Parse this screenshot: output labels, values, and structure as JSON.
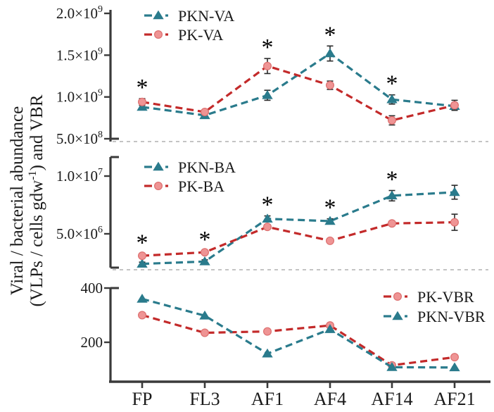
{
  "figure": {
    "ylabel_line1": "Viral / bacterial abundance",
    "ylabel_line2_pre": "(VLPs / cells gdw",
    "ylabel_line2_sup": "-1",
    "ylabel_line2_post": ") and VBR",
    "significance_symbol": "*",
    "colors": {
      "teal": "#2a7b8c",
      "red_line": "#c32a2a",
      "red_marker_fill": "#ef9494",
      "red_marker_edge": "#dd7070",
      "error_bar": "#2a2a2a",
      "axis": "#3a3a3a",
      "separator": "#b0b0b0",
      "text": "#1a1a1a",
      "asterisk": "#000000"
    }
  },
  "chart_data": [
    {
      "type": "line",
      "panel": "viral-abundance",
      "categories": [
        "FP",
        "FL3",
        "AF1",
        "AF4",
        "AF14",
        "AF21"
      ],
      "yticks": [
        {
          "value": 2000000000.0,
          "label": "2.0×10",
          "sup": "9"
        },
        {
          "value": 1500000000.0,
          "label": "1.5×10",
          "sup": "9"
        },
        {
          "value": 1000000000.0,
          "label": "1.0×10",
          "sup": "9"
        },
        {
          "value": 500000000.0,
          "label": "5.0×10",
          "sup": "8"
        }
      ],
      "ylim": [
        460000000.0,
        2050000000.0
      ],
      "grid": false,
      "series": [
        {
          "name": "PKN-VA",
          "color": "teal",
          "marker": "triangle",
          "values": [
            880000000.0,
            780000000.0,
            1020000000.0,
            1520000000.0,
            970000000.0,
            890000000.0
          ],
          "errors": [
            35000000.0,
            25000000.0,
            60000000.0,
            90000000.0,
            55000000.0,
            40000000.0
          ]
        },
        {
          "name": "PK-VA",
          "color": "red",
          "marker": "circle",
          "values": [
            940000000.0,
            820000000.0,
            1370000000.0,
            1140000000.0,
            720000000.0,
            900000000.0
          ],
          "errors": [
            40000000.0,
            25000000.0,
            90000000.0,
            50000000.0,
            55000000.0,
            60000000.0
          ]
        }
      ],
      "significant_categories": [
        "FP",
        "AF1",
        "AF4",
        "AF14"
      ],
      "legend": {
        "position": "top-left",
        "entries": [
          "PKN-VA",
          "PK-VA"
        ]
      }
    },
    {
      "type": "line",
      "panel": "bacterial-abundance",
      "categories": [
        "FP",
        "FL3",
        "AF1",
        "AF4",
        "AF14",
        "AF21"
      ],
      "yticks": [
        {
          "value": 10000000.0,
          "label": "1.0×10",
          "sup": "7"
        },
        {
          "value": 5000000.0,
          "label": "5.0×10",
          "sup": "6"
        }
      ],
      "ylim": [
        2000000.0,
        11700000.0
      ],
      "grid": false,
      "series": [
        {
          "name": "PKN-BA",
          "color": "teal",
          "marker": "triangle",
          "values": [
            2400000.0,
            2600000.0,
            6300000.0,
            6100000.0,
            8300000.0,
            8600000.0
          ],
          "errors": [
            150000.0,
            150000.0,
            250000.0,
            200000.0,
            450000.0,
            600000.0
          ]
        },
        {
          "name": "PK-BA",
          "color": "red",
          "marker": "circle",
          "values": [
            3100000.0,
            3400000.0,
            5600000.0,
            4400000.0,
            5900000.0,
            6000000.0
          ],
          "errors": [
            150000.0,
            150000.0,
            200000.0,
            150000.0,
            200000.0,
            700000.0
          ]
        }
      ],
      "significant_categories": [
        "FP",
        "FL3",
        "AF1",
        "AF4",
        "AF14"
      ],
      "legend": {
        "position": "top-left",
        "entries": [
          "PKN-BA",
          "PK-BA"
        ]
      }
    },
    {
      "type": "line",
      "panel": "vbr",
      "categories": [
        "FP",
        "FL3",
        "AF1",
        "AF4",
        "AF14",
        "AF21"
      ],
      "yticks": [
        {
          "value": 400,
          "label": "400",
          "sup": ""
        },
        {
          "value": 200,
          "label": "200",
          "sup": ""
        }
      ],
      "ylim": [
        55,
        400
      ],
      "grid": false,
      "series": [
        {
          "name": "PK-VBR",
          "color": "red",
          "marker": "circle",
          "values": [
            300,
            235,
            240,
            262,
            115,
            145
          ],
          "errors": [
            0,
            0,
            0,
            0,
            0,
            0
          ]
        },
        {
          "name": "PKN-VBR",
          "color": "teal",
          "marker": "triangle",
          "values": [
            360,
            298,
            158,
            248,
            108,
            107
          ],
          "errors": [
            0,
            0,
            0,
            0,
            0,
            0
          ]
        }
      ],
      "significant_categories": [],
      "legend": {
        "position": "top-right",
        "entries": [
          "PK-VBR",
          "PKN-VBR"
        ]
      }
    }
  ]
}
